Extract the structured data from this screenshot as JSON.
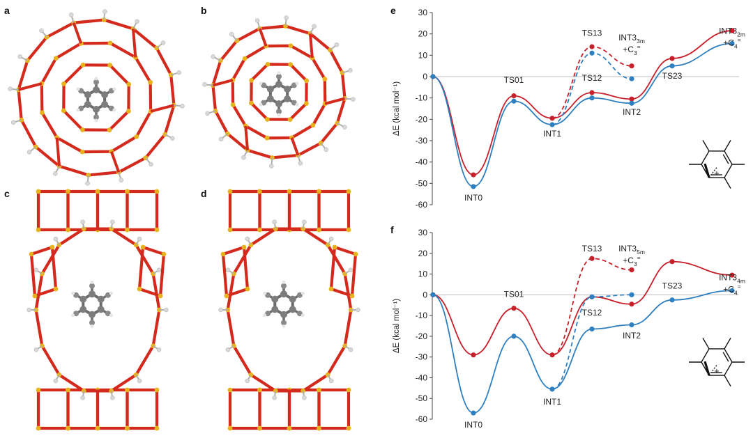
{
  "panel_labels": {
    "a": "a",
    "b": "b",
    "c": "c",
    "d": "d",
    "e": "e",
    "f": "f"
  },
  "colors": {
    "red": "#c8202b",
    "blue": "#2e7fc0",
    "framework_bond": "#d42a1e",
    "framework_atom": "#e8b21c",
    "organic": "#6b6b6b",
    "hydrogen": "#d8d8d8"
  },
  "chart_data": [
    {
      "panel": "e",
      "type": "line",
      "ylabel": "ΔE (kcal mol⁻¹)",
      "ylim": [
        -60,
        30
      ],
      "yticks": [
        30,
        20,
        10,
        0,
        -10,
        -20,
        -30,
        -40,
        -50,
        -60
      ],
      "stages": [
        0,
        1,
        2,
        3,
        4,
        5,
        6
      ],
      "series": [
        {
          "color": "red",
          "style": "solid",
          "x": [
            0,
            1,
            2,
            3,
            4,
            5,
            6,
            7
          ],
          "y": [
            0,
            -46,
            -9,
            -19.5,
            -7.5,
            -10.5,
            8.5,
            21.5
          ]
        },
        {
          "color": "blue",
          "style": "solid",
          "x": [
            0,
            1,
            2,
            3,
            4,
            5,
            6,
            7
          ],
          "y": [
            0,
            -51.5,
            -11.5,
            -22.5,
            -10,
            -12.5,
            5,
            15.5
          ]
        },
        {
          "color": "red",
          "style": "dashed",
          "x": [
            3,
            4,
            5
          ],
          "y": [
            -19.5,
            14,
            5
          ]
        },
        {
          "color": "blue",
          "style": "dashed",
          "x": [
            3,
            4,
            5
          ],
          "y": [
            -22.5,
            11,
            -1
          ]
        }
      ],
      "annotations": [
        {
          "text": "INT0",
          "x": 1,
          "y": -58
        },
        {
          "text": "TS01",
          "x": 2,
          "y": -3
        },
        {
          "text": "INT1",
          "x": 3,
          "y": -28
        },
        {
          "text": "TS13",
          "x": 4,
          "y": 19
        },
        {
          "text": "TS12",
          "x": 4,
          "y": -2
        },
        {
          "text": "INT2",
          "x": 5,
          "y": -18
        },
        {
          "text": "TS23",
          "x": 6,
          "y": -1
        },
        {
          "text": "INT3",
          "sub": "3m",
          "line2": "+C",
          "sub2": "3",
          "sup2": "=",
          "x": 5,
          "y": 17
        },
        {
          "text": "INT3",
          "sub": "2m",
          "line2": "+C",
          "sub2": "4",
          "sup2": "=",
          "x": 7,
          "y": 20
        }
      ]
    },
    {
      "panel": "f",
      "type": "line",
      "ylabel": "ΔE (kcal mol⁻¹)",
      "ylim": [
        -60,
        30
      ],
      "yticks": [
        30,
        20,
        10,
        0,
        -10,
        -20,
        -30,
        -40,
        -50,
        -60
      ],
      "series": [
        {
          "color": "red",
          "style": "solid",
          "x": [
            0,
            1,
            2,
            3,
            4,
            5,
            6,
            7
          ],
          "y": [
            0,
            -29,
            -6.5,
            -29,
            -1,
            -4.5,
            16,
            9.5
          ]
        },
        {
          "color": "blue",
          "style": "solid",
          "x": [
            0,
            1,
            2,
            3,
            4,
            5,
            6,
            7
          ],
          "y": [
            0,
            -57,
            -20,
            -45.5,
            -16.5,
            -14.5,
            -2.5,
            2
          ]
        },
        {
          "color": "red",
          "style": "dashed",
          "x": [
            3,
            4,
            5
          ],
          "y": [
            -29,
            17.5,
            12
          ]
        },
        {
          "color": "blue",
          "style": "dashed",
          "x": [
            3,
            4,
            5
          ],
          "y": [
            -45.5,
            -1,
            0
          ]
        }
      ],
      "annotations": [
        {
          "text": "INT0",
          "x": 1,
          "y": -64
        },
        {
          "text": "TS01",
          "x": 2,
          "y": -1
        },
        {
          "text": "INT1",
          "x": 3,
          "y": -53
        },
        {
          "text": "TS13",
          "x": 4,
          "y": 21
        },
        {
          "text": "TS12",
          "x": 4,
          "y": -10
        },
        {
          "text": "INT2",
          "x": 5,
          "y": -21
        },
        {
          "text": "TS23",
          "x": 6,
          "y": 3
        },
        {
          "text": "INT3",
          "sub": "5m",
          "line2": "+C",
          "sub2": "3",
          "sup2": "=",
          "x": 5,
          "y": 21
        },
        {
          "text": "INT3",
          "sub": "4m",
          "line2": "+C",
          "sub2": "4",
          "sup2": "=",
          "x": 7,
          "y": 7
        }
      ]
    }
  ]
}
